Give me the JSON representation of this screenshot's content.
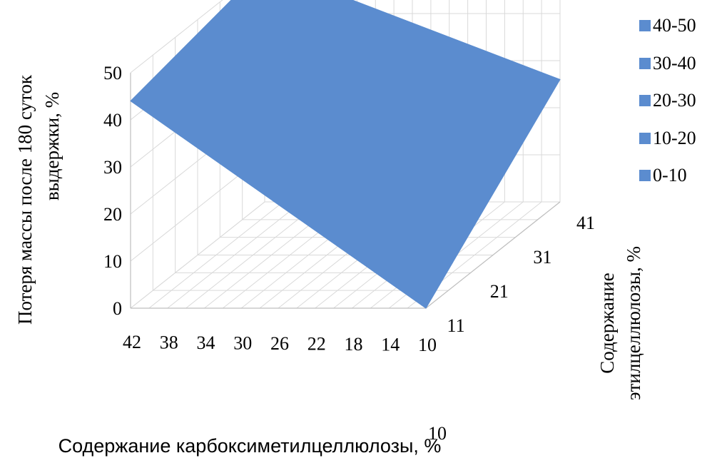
{
  "chart_data": {
    "type": "surface3d",
    "title": "",
    "zlabel_line1": "Потеря массы после 180 суток",
    "zlabel_line2": "выдержки, %",
    "xlabel": "Содержание карбоксиметилцеллюлозы, %",
    "ylabel_line1": "Содержание",
    "ylabel_line2": "этилцеллюлозы, %",
    "x_ticks": [
      "42",
      "38",
      "34",
      "30",
      "26",
      "22",
      "18",
      "14",
      "10"
    ],
    "y_ticks": [
      "11",
      "21",
      "31",
      "41"
    ],
    "z_ticks": [
      "0",
      "10",
      "20",
      "30",
      "40",
      "50"
    ],
    "zlim": [
      0,
      50
    ],
    "grid": true,
    "surface_corners": [
      {
        "cmc": 42,
        "ec": 10,
        "loss": 44
      },
      {
        "cmc": 42,
        "ec": 41,
        "loss": 50
      },
      {
        "cmc": 10,
        "ec": 41,
        "loss": 26
      },
      {
        "cmc": 10,
        "ec": 10,
        "loss": 0
      }
    ],
    "surface_color": "#5b8ccf",
    "legend_position": "top-right",
    "legend": [
      {
        "label": "40-50",
        "color": "#5b8ccf"
      },
      {
        "label": "30-40",
        "color": "#5b8ccf"
      },
      {
        "label": "20-30",
        "color": "#5b8ccf"
      },
      {
        "label": "10-20",
        "color": "#5b8ccf"
      },
      {
        "label": "0-10",
        "color": "#5b8ccf"
      }
    ]
  }
}
